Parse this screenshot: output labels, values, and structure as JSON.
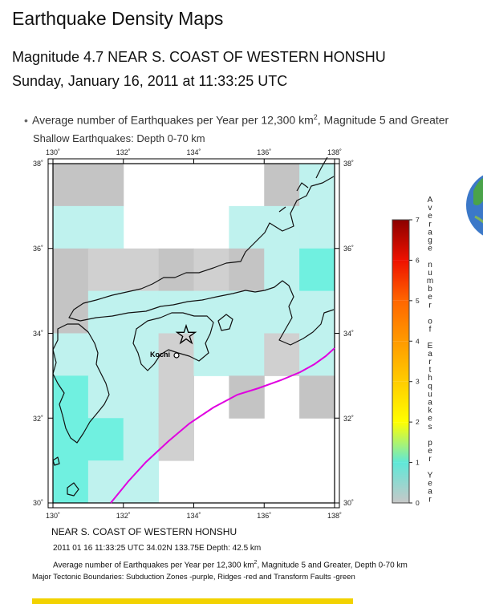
{
  "page": {
    "title": "Earthquake Density Maps",
    "event_title": "Magnitude 4.7 NEAR S. COAST OF WESTERN HONSHU",
    "event_time": "Sunday, January 16, 2011 at 11:33:25 UTC",
    "bullet_prefix": "Average number of Earthquakes per Year per 12,300 km",
    "bullet_sup": "2",
    "bullet_suffix": ", Magnitude 5 and Greater",
    "subtitle": "Shallow Earthquakes: Depth 0-70 km"
  },
  "map": {
    "lon_ticks": [
      "130˚",
      "132˚",
      "134˚",
      "136˚",
      "138˚"
    ],
    "lat_ticks": [
      "38˚",
      "36˚",
      "34˚",
      "32˚",
      "30˚"
    ],
    "city_label": "Kochi",
    "colors": {
      "subduction": "#e000e0",
      "land_outline": "#111111"
    }
  },
  "legend": {
    "title": "Average number of Earthquakes per Year",
    "ticks": [
      "0",
      "1",
      "2",
      "3",
      "4",
      "5",
      "6",
      "7"
    ],
    "colors": [
      "#c8c8c8",
      "#5fe8d8",
      "#ffff00",
      "#ffcc00",
      "#ff9a00",
      "#ff6600",
      "#ee1100",
      "#8b0000"
    ]
  },
  "captions": {
    "region": "NEAR S. COAST OF WESTERN HONSHU",
    "event_line": "2011 01 16 11:33:25 UTC 34.02N 133.75E Depth: 42.5 km",
    "average_prefix": "Average number of Earthquakes per Year per 12,300 km",
    "average_sup": "2",
    "average_suffix": ", Magnitude 5 and Greater, Depth 0-70 km",
    "tectonic": "Major Tectonic Boundaries: Subduction Zones -purple, Ridges -red and Transform Faults -green"
  }
}
